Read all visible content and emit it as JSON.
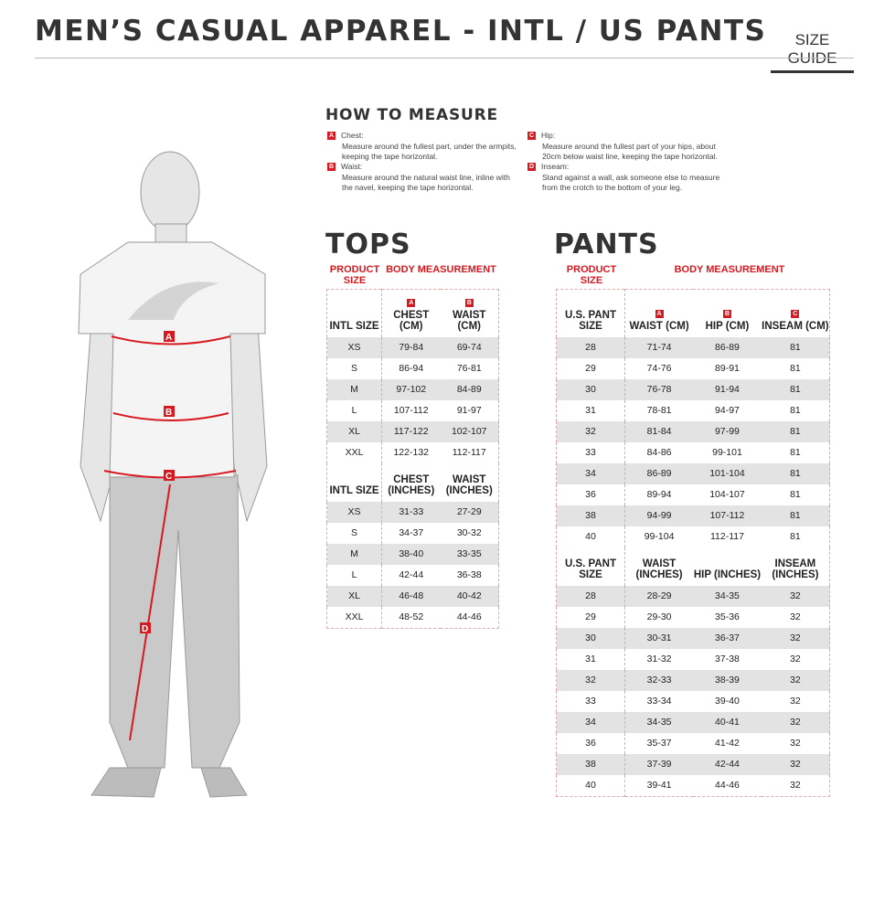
{
  "header": {
    "title": "MEN’S CASUAL APPAREL - INTL / US PANTS",
    "size_guide": "SIZE GUIDE"
  },
  "how_to_measure": {
    "heading": "HOW TO MEASURE",
    "items": [
      {
        "letter": "A",
        "label": "Chest:",
        "text": "Measure around the fullest part, under the armpits, keeping the tape horizontal."
      },
      {
        "letter": "B",
        "label": "Waist:",
        "text": "Measure around the natural waist line, inline with the navel, keeping the tape horizontal."
      },
      {
        "letter": "C",
        "label": "Hip:",
        "text": "Measure around the fullest part of your hips, about 20cm below waist line, keeping the tape horizontal."
      },
      {
        "letter": "D",
        "label": "Inseam:",
        "text": "Stand against a wall, ask someone else to measure from the crotch to the bottom of your leg."
      }
    ]
  },
  "figure_labels": [
    "A",
    "B",
    "C",
    "D"
  ],
  "accent_color": "#d71920",
  "tops": {
    "title": "TOPS",
    "product_size": "PRODUCT SIZE",
    "body_measurement": "BODY MEASUREMENT",
    "cm": {
      "headers": [
        "INTL SIZE",
        "CHEST (CM)",
        "WAIST (CM)"
      ],
      "letters": [
        "",
        "A",
        "B"
      ],
      "rows": [
        [
          "XS",
          "79-84",
          "69-74"
        ],
        [
          "S",
          "86-94",
          "76-81"
        ],
        [
          "M",
          "97-102",
          "84-89"
        ],
        [
          "L",
          "107-112",
          "91-97"
        ],
        [
          "XL",
          "117-122",
          "102-107"
        ],
        [
          "XXL",
          "122-132",
          "112-117"
        ]
      ]
    },
    "inches": {
      "headers": [
        "INTL SIZE",
        "CHEST (INCHES)",
        "WAIST (INCHES)"
      ],
      "rows": [
        [
          "XS",
          "31-33",
          "27-29"
        ],
        [
          "S",
          "34-37",
          "30-32"
        ],
        [
          "M",
          "38-40",
          "33-35"
        ],
        [
          "L",
          "42-44",
          "36-38"
        ],
        [
          "XL",
          "46-48",
          "40-42"
        ],
        [
          "XXL",
          "48-52",
          "44-46"
        ]
      ]
    }
  },
  "pants": {
    "title": "PANTS",
    "product_size": "PRODUCT SIZE",
    "body_measurement": "BODY MEASUREMENT",
    "cm": {
      "headers": [
        "U.S. PANT SIZE",
        "WAIST (CM)",
        "HIP (CM)",
        "INSEAM (CM)"
      ],
      "letters": [
        "",
        "A",
        "B",
        "C"
      ],
      "rows": [
        [
          "28",
          "71-74",
          "86-89",
          "81"
        ],
        [
          "29",
          "74-76",
          "89-91",
          "81"
        ],
        [
          "30",
          "76-78",
          "91-94",
          "81"
        ],
        [
          "31",
          "78-81",
          "94-97",
          "81"
        ],
        [
          "32",
          "81-84",
          "97-99",
          "81"
        ],
        [
          "33",
          "84-86",
          "99-101",
          "81"
        ],
        [
          "34",
          "86-89",
          "101-104",
          "81"
        ],
        [
          "36",
          "89-94",
          "104-107",
          "81"
        ],
        [
          "38",
          "94-99",
          "107-112",
          "81"
        ],
        [
          "40",
          "99-104",
          "112-117",
          "81"
        ]
      ]
    },
    "inches": {
      "headers": [
        "U.S. PANT SIZE",
        "WAIST (INCHES)",
        "HIP (INCHES)",
        "INSEAM (INCHES)"
      ],
      "rows": [
        [
          "28",
          "28-29",
          "34-35",
          "32"
        ],
        [
          "29",
          "29-30",
          "35-36",
          "32"
        ],
        [
          "30",
          "30-31",
          "36-37",
          "32"
        ],
        [
          "31",
          "31-32",
          "37-38",
          "32"
        ],
        [
          "32",
          "32-33",
          "38-39",
          "32"
        ],
        [
          "33",
          "33-34",
          "39-40",
          "32"
        ],
        [
          "34",
          "34-35",
          "40-41",
          "32"
        ],
        [
          "36",
          "35-37",
          "41-42",
          "32"
        ],
        [
          "38",
          "37-39",
          "42-44",
          "32"
        ],
        [
          "40",
          "39-41",
          "44-46",
          "32"
        ]
      ]
    }
  }
}
